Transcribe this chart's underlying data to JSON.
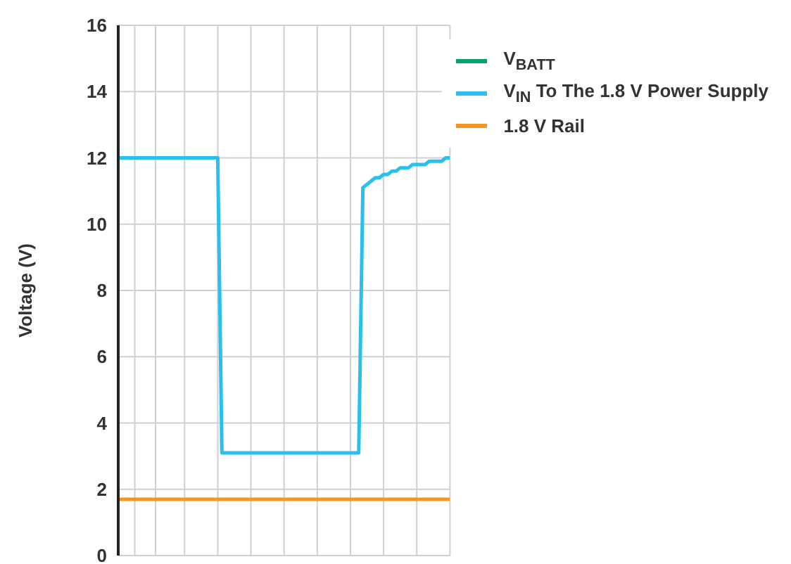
{
  "chart_data": {
    "type": "line",
    "ylabel": "Voltage (V)",
    "categories": [
      null,
      null,
      null,
      null,
      null,
      null,
      null,
      null,
      null,
      null,
      null,
      null,
      null,
      null,
      null,
      null,
      null,
      null,
      null,
      null,
      null,
      null,
      null,
      null,
      null,
      null,
      null,
      null,
      null,
      null,
      null,
      null,
      null,
      null,
      null,
      null,
      null,
      null,
      null,
      null,
      null,
      null,
      null,
      null,
      null,
      null,
      null,
      null,
      null,
      null,
      null,
      null,
      null,
      null,
      null,
      null,
      null,
      null,
      null,
      null,
      null,
      null,
      null,
      null,
      null,
      null,
      null,
      null,
      null,
      null,
      null,
      null,
      null,
      null,
      null,
      null,
      null,
      null,
      null,
      null,
      null
    ],
    "series": [
      {
        "name": "V$_{BATT}$",
        "color": "#00a36c",
        "values": [
          null,
          null,
          null,
          null,
          null,
          null,
          null,
          null,
          null,
          null,
          null,
          null,
          null,
          null,
          null,
          null,
          null,
          null,
          null,
          null,
          null,
          null,
          null,
          null,
          null,
          null,
          null,
          null,
          null,
          null,
          null,
          null,
          null,
          null,
          null,
          null,
          null,
          null,
          null,
          null,
          null,
          null,
          null,
          null,
          null,
          null,
          null,
          null,
          null,
          null,
          null,
          null,
          null,
          null,
          null,
          null,
          null,
          null,
          null,
          null,
          null,
          null,
          null,
          null,
          null,
          null,
          null,
          null,
          null,
          null,
          null,
          null,
          null,
          null,
          null,
          null,
          null,
          null,
          null,
          null,
          null
        ]
      },
      {
        "name": "V$_{IN}$ To The 1.8 V Power Supply",
        "color": "#29c0ee",
        "values": [
          12.0,
          12.0,
          12.0,
          12.0,
          12.0,
          12.0,
          12.0,
          12.0,
          12.0,
          12.0,
          12.0,
          12.0,
          12.0,
          12.0,
          12.0,
          12.0,
          12.0,
          12.0,
          12.0,
          12.0,
          12.0,
          12.0,
          12.0,
          12.0,
          12.0,
          3.1,
          3.1,
          3.1,
          3.1,
          3.1,
          3.1,
          3.1,
          3.1,
          3.1,
          3.1,
          3.1,
          3.1,
          3.1,
          3.1,
          3.1,
          3.1,
          3.1,
          3.1,
          3.1,
          3.1,
          3.1,
          3.1,
          3.1,
          3.1,
          3.1,
          3.1,
          3.1,
          3.1,
          3.1,
          3.1,
          3.1,
          3.1,
          3.1,
          3.1,
          11.1,
          11.2,
          11.3,
          11.4,
          11.4,
          11.5,
          11.5,
          11.6,
          11.6,
          11.7,
          11.7,
          11.7,
          11.8,
          11.8,
          11.8,
          11.8,
          11.9,
          11.9,
          11.9,
          11.9,
          12.0,
          12.0
        ]
      },
      {
        "name": "1.8 V Rail",
        "color": "#f7941d",
        "values": [
          1.7,
          1.7,
          1.7,
          1.7,
          1.7,
          1.7,
          1.7,
          1.7,
          1.7,
          1.7,
          1.7,
          1.7,
          1.7,
          1.7,
          1.7,
          1.7,
          1.7,
          1.7,
          1.7,
          1.7,
          1.7,
          1.7,
          1.7,
          1.7,
          1.7,
          1.7,
          1.7,
          1.7,
          1.7,
          1.7,
          1.7,
          1.7,
          1.7,
          1.7,
          1.7,
          1.7,
          1.7,
          1.7,
          1.7,
          1.7,
          1.7,
          1.7,
          1.7,
          1.7,
          1.7,
          1.7,
          1.7,
          1.7,
          1.7,
          1.7,
          1.7,
          1.7,
          1.7,
          1.7,
          1.7,
          1.7,
          1.7,
          1.7,
          1.7,
          1.7,
          1.7,
          1.7,
          1.7,
          1.7,
          1.7,
          1.7,
          1.7,
          1.7,
          1.7,
          1.7,
          1.7,
          1.7,
          1.7,
          1.7,
          1.7,
          1.7,
          1.7,
          1.7,
          1.7,
          1.7,
          1.7
        ]
      }
    ],
    "ylim": [
      0,
      16
    ],
    "yticks": [
      0,
      2,
      4,
      6,
      8,
      10,
      12,
      14,
      16
    ],
    "grid": true,
    "legend": "top right",
    "marker": "none",
    "line_style": "solid"
  }
}
